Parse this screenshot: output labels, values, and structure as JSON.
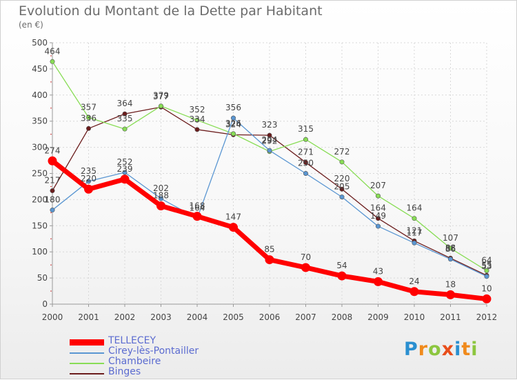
{
  "title": "Evolution du Montant de la Dette par Habitant",
  "subtitle": "(en €)",
  "logo": "Proxiti",
  "chart_data": {
    "type": "line",
    "title": "Evolution du Montant de la Dette par Habitant",
    "subtitle": "(en €)",
    "x": [
      "2000",
      "2001",
      "2002",
      "2003",
      "2004",
      "2005",
      "2006",
      "2007",
      "2008",
      "2009",
      "2010",
      "2011",
      "2012"
    ],
    "ylim": [
      0,
      500
    ],
    "yticks": [
      0,
      50,
      100,
      150,
      200,
      250,
      300,
      350,
      400,
      450,
      500
    ],
    "grid": true,
    "series": [
      {
        "name": "TELLECEY",
        "color": "#ff0000",
        "values": [
          274,
          220,
          239,
          188,
          168,
          147,
          85,
          70,
          54,
          43,
          24,
          18,
          10
        ]
      },
      {
        "name": "Cirey-lès-Pontailler",
        "color": "#5a96d2",
        "values": [
          180,
          235,
          252,
          202,
          164,
          356,
          294,
          250,
          205,
          149,
          117,
          86,
          53
        ]
      },
      {
        "name": "Chambeire",
        "color": "#88dd55",
        "values": [
          464,
          357,
          335,
          379,
          352,
          326,
          292,
          315,
          272,
          207,
          164,
          107,
          64
        ]
      },
      {
        "name": "Binges",
        "color": "#6b1c1c",
        "values": [
          217,
          336,
          364,
          377,
          334,
          324,
          323,
          271,
          220,
          164,
          121,
          88,
          55
        ]
      }
    ]
  }
}
